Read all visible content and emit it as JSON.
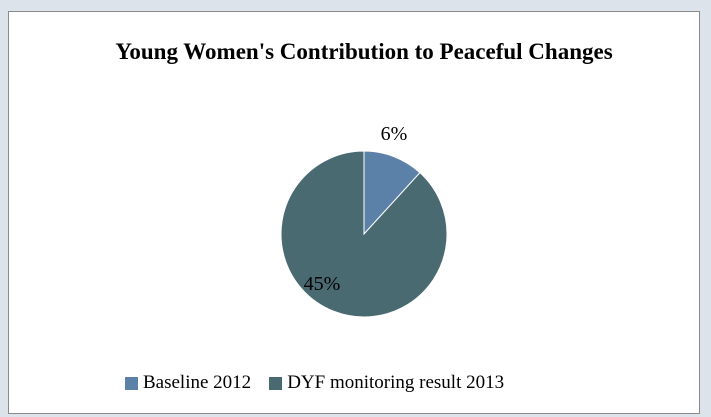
{
  "chart_data": {
    "type": "pie",
    "title": "Young Women's Contribution to Peaceful Changes",
    "categories": [
      "Baseline 2012",
      "DYF monitoring result 2013"
    ],
    "values": [
      6,
      45
    ],
    "labels": [
      "6%",
      "45%"
    ],
    "colors": [
      "#5b81a9",
      "#4a6a72"
    ],
    "legend": "bottom"
  }
}
